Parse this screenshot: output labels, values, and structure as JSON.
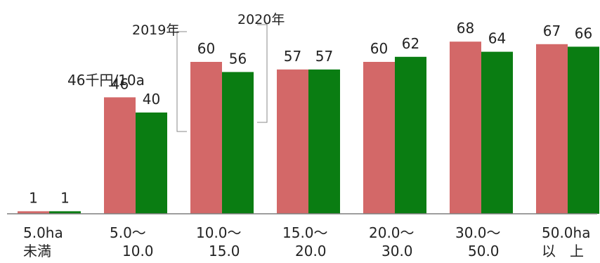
{
  "chart_data": {
    "type": "bar",
    "unit_label": "46千円/10a",
    "categories": [
      [
        "5.0ha",
        "未満"
      ],
      [
        "5.0～",
        "10.0"
      ],
      [
        "10.0～",
        "15.0"
      ],
      [
        "15.0～",
        "20.0"
      ],
      [
        "20.0～",
        "30.0"
      ],
      [
        "30.0～",
        "50.0"
      ],
      [
        "50.0ha",
        "以　上"
      ]
    ],
    "series": [
      {
        "name": "2019年",
        "color": "#d36868",
        "values": [
          1,
          46,
          60,
          57,
          60,
          68,
          67
        ]
      },
      {
        "name": "2020年",
        "color": "#0a7d12",
        "values": [
          1,
          40,
          56,
          57,
          62,
          64,
          66
        ]
      }
    ],
    "ylim": [
      0,
      70
    ]
  }
}
